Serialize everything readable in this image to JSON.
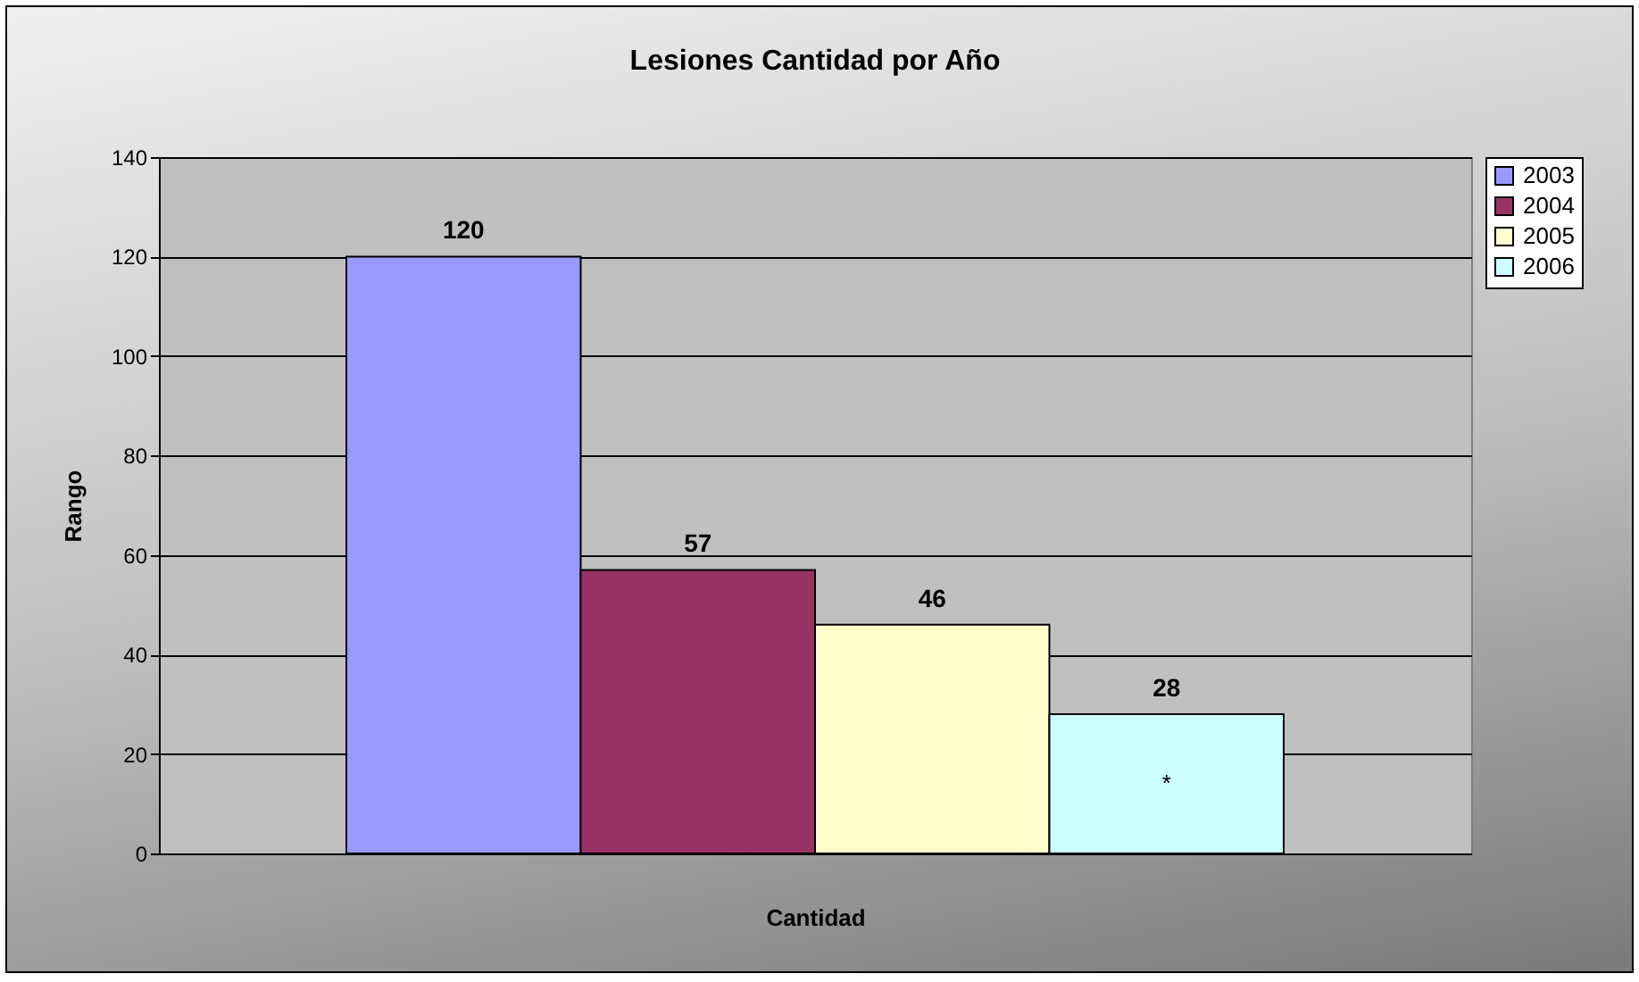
{
  "chart_data": {
    "type": "bar",
    "title": "Lesiones Cantidad por Año",
    "xlabel": "Cantidad",
    "ylabel": "Rango",
    "categories": [
      null
    ],
    "series": [
      {
        "name": "2003",
        "color": "#9999ff",
        "values": [
          120
        ]
      },
      {
        "name": "2004",
        "color": "#993366",
        "values": [
          57
        ]
      },
      {
        "name": "2005",
        "color": "#ffffcc",
        "values": [
          46
        ]
      },
      {
        "name": "2006",
        "color": "#ccffff",
        "values": [
          28
        ]
      }
    ],
    "ylim": [
      0,
      140
    ],
    "yticks": [
      0,
      20,
      40,
      60,
      80,
      100,
      120,
      140
    ],
    "grid": "y",
    "legend": "right",
    "data_labels": true,
    "annotations": [
      "*"
    ]
  }
}
